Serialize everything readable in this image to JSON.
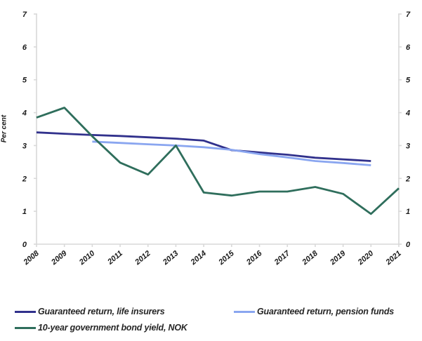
{
  "chart_data": {
    "type": "line",
    "title": "",
    "ylabel": "Per cent",
    "xlabel": "",
    "ylim": [
      0,
      7
    ],
    "yticks": [
      0,
      1,
      2,
      3,
      4,
      5,
      6,
      7
    ],
    "x": [
      2008,
      2009,
      2010,
      2011,
      2012,
      2013,
      2014,
      2015,
      2016,
      2017,
      2018,
      2019,
      2020,
      2021
    ],
    "grid": false,
    "legend_position": "bottom",
    "axis_color": "#d9d9d9",
    "text_color": "#1a1a1a",
    "series": [
      {
        "name": "Guaranteed return, life insurers",
        "color": "#31318c",
        "x": [
          2008,
          2009,
          2010,
          2011,
          2012,
          2013,
          2014,
          2015,
          2016,
          2017,
          2018,
          2019,
          2020
        ],
        "values": [
          3.4,
          3.36,
          3.32,
          3.29,
          3.25,
          3.21,
          3.15,
          2.86,
          2.79,
          2.72,
          2.63,
          2.58,
          2.53
        ]
      },
      {
        "name": "Guaranteed return, pension funds",
        "color": "#8aa6f0",
        "x": [
          2010,
          2011,
          2012,
          2013,
          2014,
          2015,
          2016,
          2017,
          2018,
          2019,
          2020
        ],
        "values": [
          3.12,
          3.08,
          3.04,
          3.0,
          2.95,
          2.87,
          2.74,
          2.64,
          2.53,
          2.47,
          2.4
        ]
      },
      {
        "name": "10-year government bond yield, NOK",
        "color": "#2f6e5c",
        "x": [
          2008,
          2009,
          2010,
          2011,
          2012,
          2013,
          2014,
          2015,
          2016,
          2017,
          2018,
          2019,
          2020,
          2021
        ],
        "values": [
          3.85,
          4.15,
          3.28,
          2.48,
          2.12,
          3.0,
          1.57,
          1.48,
          1.6,
          1.6,
          1.74,
          1.53,
          0.92,
          1.7
        ]
      }
    ]
  }
}
